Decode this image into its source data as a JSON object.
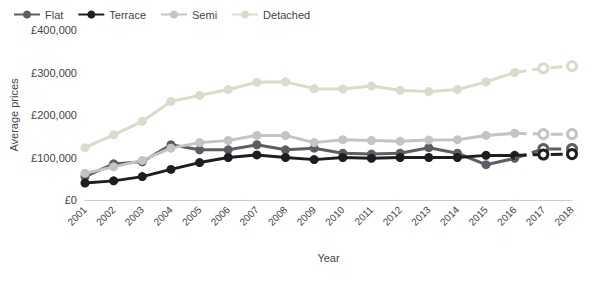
{
  "chart_data": {
    "type": "line",
    "x_label": "Year",
    "y_label": "Average prices",
    "categories": [
      "2001",
      "2002",
      "2003",
      "2004",
      "2005",
      "2006",
      "2007",
      "2008",
      "2009",
      "2010",
      "2011",
      "2012",
      "2013",
      "2014",
      "2015",
      "2016",
      "2017",
      "2018"
    ],
    "series": [
      {
        "name": "Flat",
        "color": "#5c5e66",
        "values": [
          55000,
          85000,
          90000,
          130000,
          118000,
          118000,
          130000,
          118000,
          122000,
          110000,
          108000,
          110000,
          123000,
          110000,
          83000,
          98000,
          120000,
          120000
        ]
      },
      {
        "name": "Terrace",
        "color": "#1e1e1e",
        "values": [
          40000,
          45000,
          55000,
          72000,
          88000,
          100000,
          106000,
          100000,
          95000,
          100000,
          98000,
          100000,
          100000,
          100000,
          105000,
          105000,
          107000,
          108000
        ]
      },
      {
        "name": "Semi",
        "color": "#c4c4c8",
        "values": [
          63000,
          78000,
          93000,
          122000,
          135000,
          140000,
          152000,
          152000,
          135000,
          142000,
          140000,
          138000,
          141000,
          142000,
          152000,
          157000,
          155000,
          155000
        ]
      },
      {
        "name": "Detached",
        "color": "#dcdac8",
        "values": [
          123000,
          153000,
          185000,
          232000,
          246000,
          260000,
          277000,
          278000,
          262000,
          261000,
          268000,
          258000,
          255000,
          260000,
          278000,
          300000,
          310000,
          315000
        ]
      }
    ],
    "ylim": [
      0,
      400000
    ],
    "yticks": [
      {
        "value": 0,
        "label": "£0"
      },
      {
        "value": 100000,
        "label": "£100,000"
      },
      {
        "value": 200000,
        "label": "£200,000"
      },
      {
        "value": 300000,
        "label": "£300,000"
      },
      {
        "value": 400000,
        "label": "£400,000"
      }
    ],
    "marker": "circle",
    "grid": false,
    "legend": "top-left"
  }
}
